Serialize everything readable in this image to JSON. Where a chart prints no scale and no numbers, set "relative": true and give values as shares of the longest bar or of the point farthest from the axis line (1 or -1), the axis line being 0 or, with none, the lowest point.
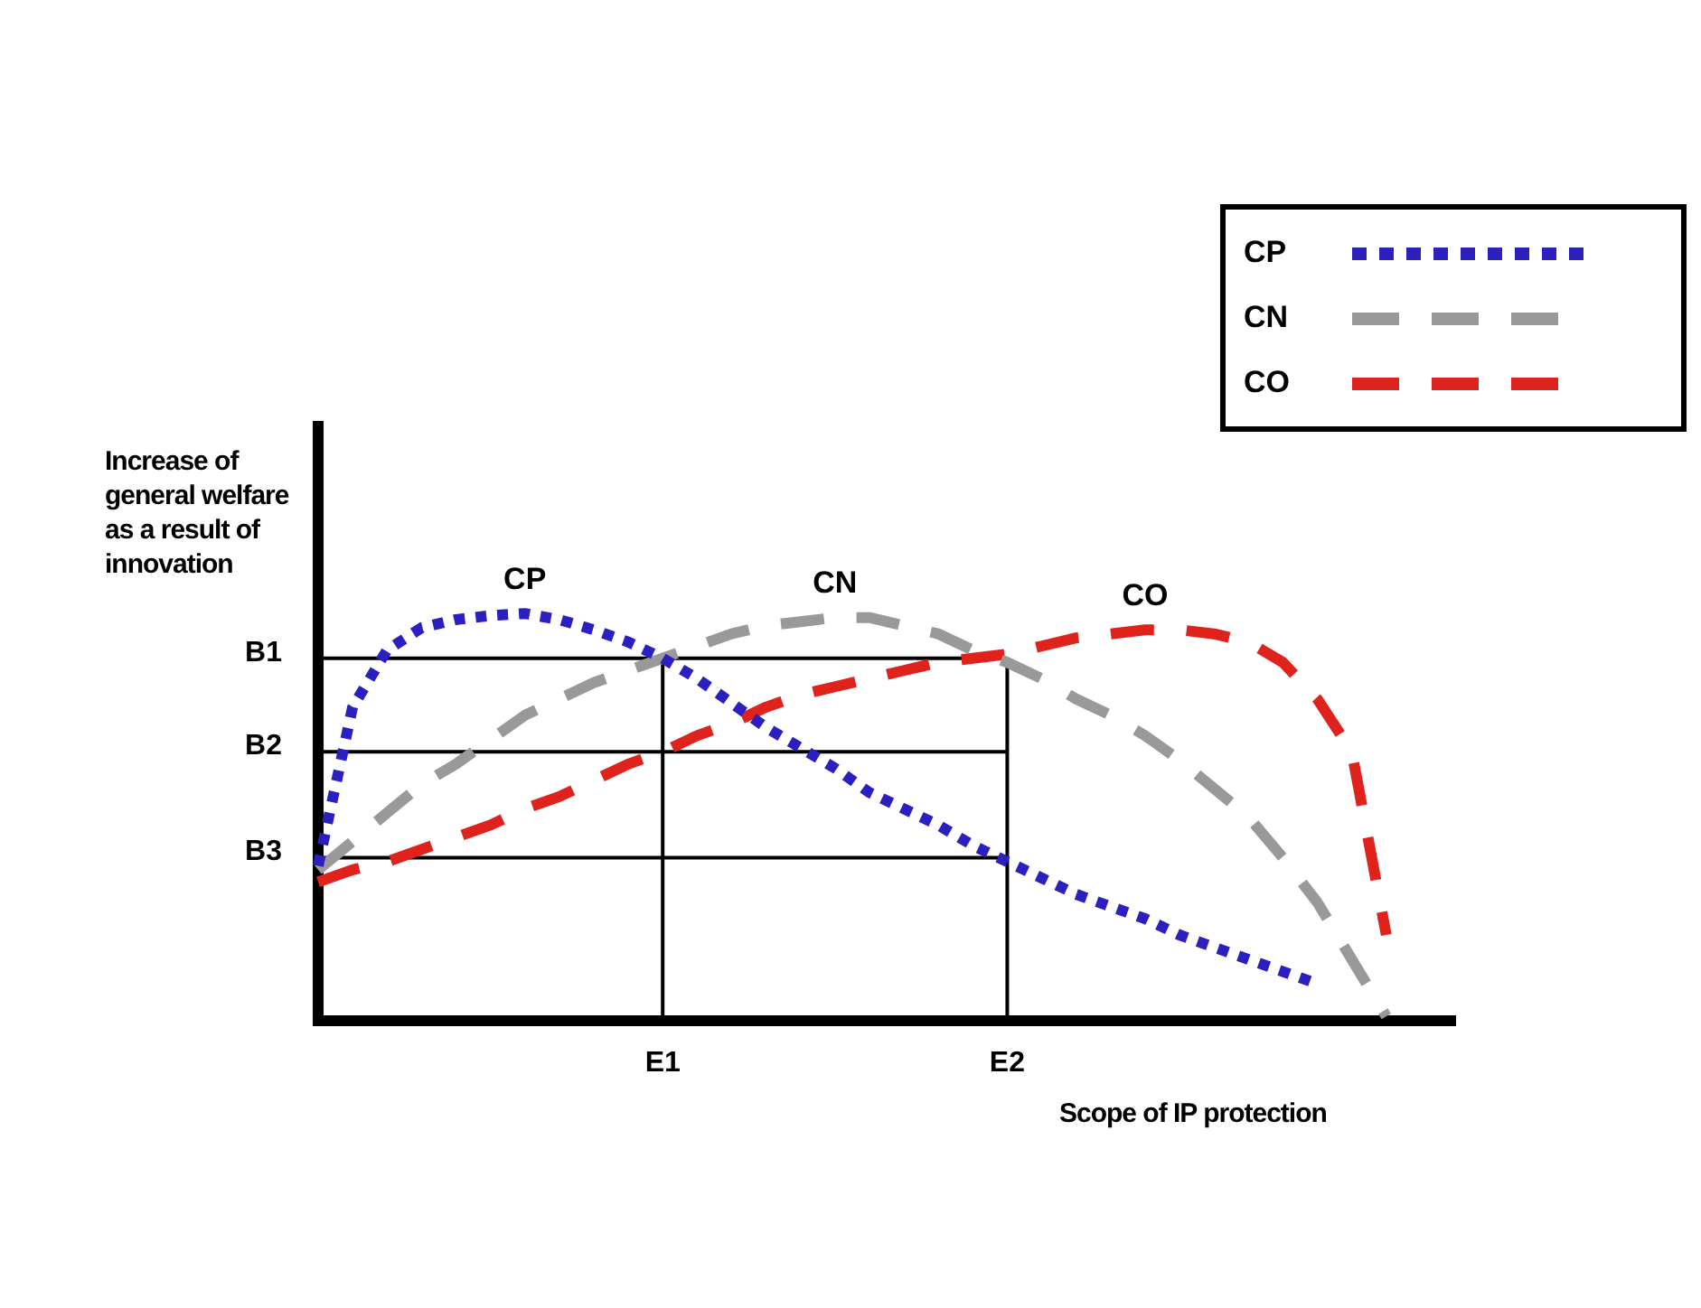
{
  "chart_data": {
    "type": "line",
    "relative": true,
    "tick_labels": "x",
    "xlabel": "Scope of IP protection",
    "ylabel": "Increase of general welfare as a result of innovation",
    "categories": [
      null,
      null,
      null,
      null,
      null,
      null,
      null,
      null,
      null,
      null,
      "E1",
      null,
      null,
      null,
      null,
      null,
      null,
      null,
      null,
      null,
      "E2",
      null,
      null,
      null,
      null,
      null,
      null,
      null,
      null,
      null,
      null,
      null,
      null,
      null
    ],
    "grid": false,
    "legend": "top right",
    "marker": "none",
    "series": [
      {
        "name": "CP",
        "color": "#2b1fbf",
        "line_style": "dotted",
        "values": [
          0.38,
          0.77,
          0.91,
          0.965,
          0.985,
          0.995,
          1.0,
          0.985,
          0.96,
          0.93,
          0.89,
          0.84,
          0.78,
          0.72,
          0.67,
          0.62,
          0.56,
          0.52,
          0.48,
          0.43,
          0.39,
          0.35,
          0.31,
          0.28,
          0.25,
          0.21,
          0.18,
          0.15,
          0.12,
          0.09,
          null,
          null,
          null,
          null
        ]
      },
      {
        "name": "CN",
        "color": "#999999",
        "line_style": "dashed",
        "values": [
          0.37,
          0.44,
          0.51,
          0.58,
          0.63,
          0.69,
          0.75,
          0.79,
          0.83,
          0.86,
          0.89,
          0.92,
          0.95,
          0.97,
          0.98,
          0.99,
          0.99,
          0.97,
          0.95,
          0.91,
          0.88,
          0.84,
          0.79,
          0.75,
          0.7,
          0.64,
          0.57,
          0.5,
          0.4,
          0.29,
          0.15,
          0.01,
          null,
          null
        ]
      },
      {
        "name": "CO",
        "color": "#e0221c",
        "line_style": "dashed",
        "values": [
          0.34,
          0.37,
          0.39,
          0.42,
          0.45,
          0.48,
          0.52,
          0.55,
          0.59,
          0.63,
          0.66,
          0.7,
          0.73,
          0.77,
          0.8,
          0.82,
          0.84,
          0.86,
          0.88,
          0.89,
          0.9,
          0.92,
          0.94,
          0.95,
          0.96,
          0.96,
          0.95,
          0.93,
          0.88,
          0.79,
          0.66,
          0.21,
          null,
          null
        ]
      }
    ],
    "ref_lines": [
      {
        "axis": "y",
        "value": 0.89,
        "label": "B1",
        "color": "#000000"
      },
      {
        "axis": "y",
        "value": 0.66,
        "label": "B2",
        "color": "#000000"
      },
      {
        "axis": "y",
        "value": 0.4,
        "label": "B3",
        "color": "#000000"
      },
      {
        "axis": "x",
        "value": "E1",
        "color": "#000000"
      },
      {
        "axis": "x",
        "value": "E2",
        "color": "#000000"
      }
    ],
    "annotations": [
      "CP",
      "CN",
      "CO"
    ]
  }
}
